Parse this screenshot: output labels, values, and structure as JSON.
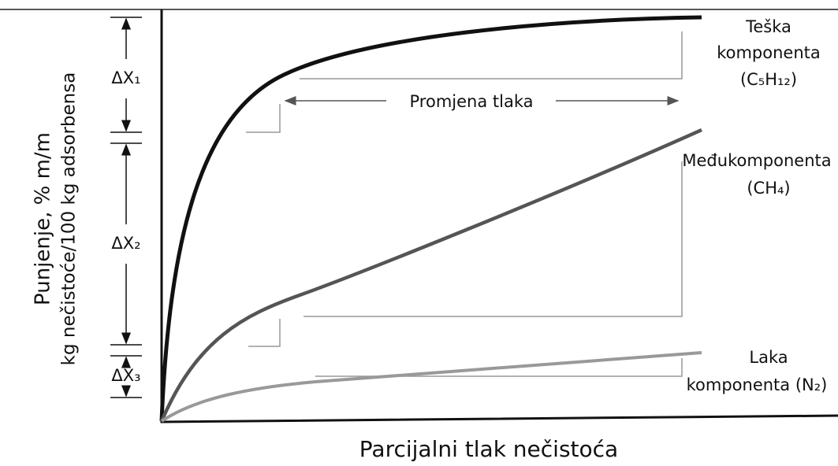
{
  "axes": {
    "y_label": [
      "Punjenje, % m/m",
      "kg nečistoće/100 kg adsorbensa"
    ],
    "x_label": "Parcijalni tlak nečistoća"
  },
  "annotations": {
    "pressure_change": "Promjena tlaka",
    "delta_x": [
      "ΔX₁",
      "ΔX₂",
      "ΔX₃"
    ]
  },
  "curves": [
    {
      "label": [
        "Teška",
        "komponenta",
        "(C₅H₁₂)"
      ]
    },
    {
      "label": [
        "Međukomponenta",
        "(CH₄)"
      ]
    },
    {
      "label": [
        "Laka",
        "komponenta (N₂)"
      ]
    }
  ]
}
